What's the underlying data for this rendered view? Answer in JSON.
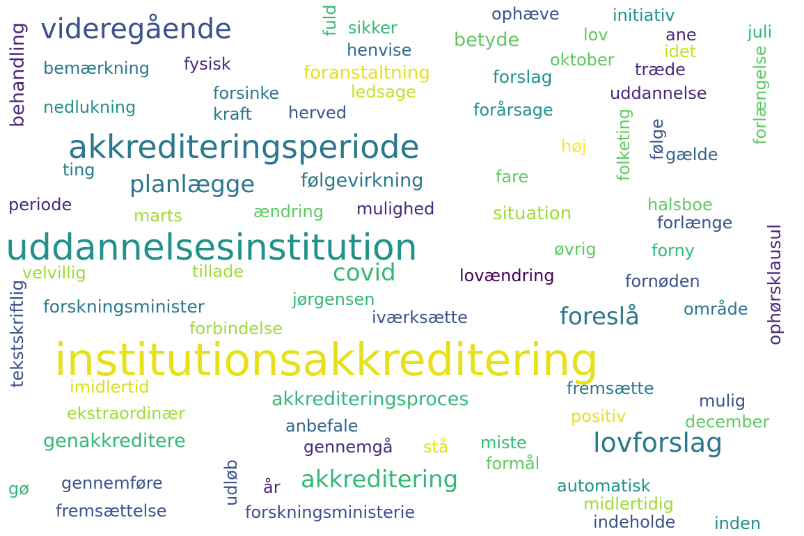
{
  "words": [
    {
      "text": "institutionsakkreditering",
      "color": "#e6e11b"
    },
    {
      "text": "uddannelsesinstitution",
      "color": "#21918c"
    },
    {
      "text": "akkrediteringsperiode",
      "color": "#2a788e"
    },
    {
      "text": "videregående",
      "color": "#3b528b"
    },
    {
      "text": "lovforslag",
      "color": "#2a788e"
    },
    {
      "text": "akkreditering",
      "color": "#35b779"
    },
    {
      "text": "planlægge",
      "color": "#2a788e"
    },
    {
      "text": "covid",
      "color": "#35b779"
    },
    {
      "text": "foreslå",
      "color": "#2a788e"
    },
    {
      "text": "følgevirkning",
      "color": "#2a788e"
    },
    {
      "text": "akkrediteringsproces",
      "color": "#35b779"
    },
    {
      "text": "genakkreditere",
      "color": "#35b779"
    },
    {
      "text": "forskningsminister",
      "color": "#2a788e"
    },
    {
      "text": "behandling",
      "color": "#482878"
    },
    {
      "text": "tekstskriftlig",
      "color": "#3b528b"
    },
    {
      "text": "ophørsklausul",
      "color": "#482878"
    },
    {
      "text": "folketing",
      "color": "#5ec962"
    },
    {
      "text": "forlængelse",
      "color": "#5ec962"
    },
    {
      "text": "fuld",
      "color": "#35b779"
    },
    {
      "text": "udløb",
      "color": "#3b528b"
    },
    {
      "text": "følge",
      "color": "#3b528b"
    },
    {
      "text": "sikker",
      "color": "#35b779"
    },
    {
      "text": "ophæve",
      "color": "#3b528b"
    },
    {
      "text": "initiativ",
      "color": "#21918c"
    },
    {
      "text": "henvise",
      "color": "#31688e"
    },
    {
      "text": "betyde",
      "color": "#5ec962"
    },
    {
      "text": "lov",
      "color": "#5ec962"
    },
    {
      "text": "ane",
      "color": "#482878"
    },
    {
      "text": "juli",
      "color": "#35b779"
    },
    {
      "text": "idet",
      "color": "#c8e020"
    },
    {
      "text": "oktober",
      "color": "#5ec962"
    },
    {
      "text": "bemærkning",
      "color": "#2a788e"
    },
    {
      "text": "fysisk",
      "color": "#482878"
    },
    {
      "text": "foranstaltning",
      "color": "#e6e11b"
    },
    {
      "text": "forslag",
      "color": "#21918c"
    },
    {
      "text": "træde",
      "color": "#482878"
    },
    {
      "text": "forsinke",
      "color": "#2a788e"
    },
    {
      "text": "ledsage",
      "color": "#c8e020"
    },
    {
      "text": "uddannelse",
      "color": "#482878"
    },
    {
      "text": "nedlukning",
      "color": "#21918c"
    },
    {
      "text": "kraft",
      "color": "#2a788e"
    },
    {
      "text": "herved",
      "color": "#3b528b"
    },
    {
      "text": "forårsage",
      "color": "#21918c"
    },
    {
      "text": "høj",
      "color": "#fde725"
    },
    {
      "text": "gælde",
      "color": "#31688e"
    },
    {
      "text": "ting",
      "color": "#2a788e"
    },
    {
      "text": "fare",
      "color": "#5ec962"
    },
    {
      "text": "periode",
      "color": "#482878"
    },
    {
      "text": "halsboe",
      "color": "#5ec962"
    },
    {
      "text": "marts",
      "color": "#a0da39"
    },
    {
      "text": "ændring",
      "color": "#5ec962"
    },
    {
      "text": "mulighed",
      "color": "#482878"
    },
    {
      "text": "situation",
      "color": "#a0da39"
    },
    {
      "text": "forlænge",
      "color": "#3b528b"
    },
    {
      "text": "øvrig",
      "color": "#5ec962"
    },
    {
      "text": "forny",
      "color": "#35b779"
    },
    {
      "text": "velvillig",
      "color": "#a0da39"
    },
    {
      "text": "tillade",
      "color": "#a0da39"
    },
    {
      "text": "lovændring",
      "color": "#440154"
    },
    {
      "text": "fornøden",
      "color": "#3b528b"
    },
    {
      "text": "jørgensen",
      "color": "#35b779"
    },
    {
      "text": "område",
      "color": "#2a788e"
    },
    {
      "text": "forbindelse",
      "color": "#a0da39"
    },
    {
      "text": "iværksætte",
      "color": "#3b528b"
    },
    {
      "text": "imidlertid",
      "color": "#d8e219"
    },
    {
      "text": "fremsætte",
      "color": "#2a788e"
    },
    {
      "text": "mulig",
      "color": "#3b528b"
    },
    {
      "text": "ekstraordinær",
      "color": "#a0da39"
    },
    {
      "text": "anbefale",
      "color": "#31688e"
    },
    {
      "text": "positiv",
      "color": "#e6e11b"
    },
    {
      "text": "december",
      "color": "#5ec962"
    },
    {
      "text": "gennemgå",
      "color": "#482878"
    },
    {
      "text": "stå",
      "color": "#e6e11b"
    },
    {
      "text": "miste",
      "color": "#35b779"
    },
    {
      "text": "formål",
      "color": "#5ec962"
    },
    {
      "text": "gø",
      "color": "#35b779"
    },
    {
      "text": "gennemføre",
      "color": "#3b528b"
    },
    {
      "text": "år",
      "color": "#482878"
    },
    {
      "text": "automatisk",
      "color": "#21918c"
    },
    {
      "text": "midlertidig",
      "color": "#a0da39"
    },
    {
      "text": "fremsættelse",
      "color": "#3b528b"
    },
    {
      "text": "forskningsministerie",
      "color": "#3b528b"
    },
    {
      "text": "indeholde",
      "color": "#3b528b"
    },
    {
      "text": "inden",
      "color": "#21918c"
    }
  ]
}
